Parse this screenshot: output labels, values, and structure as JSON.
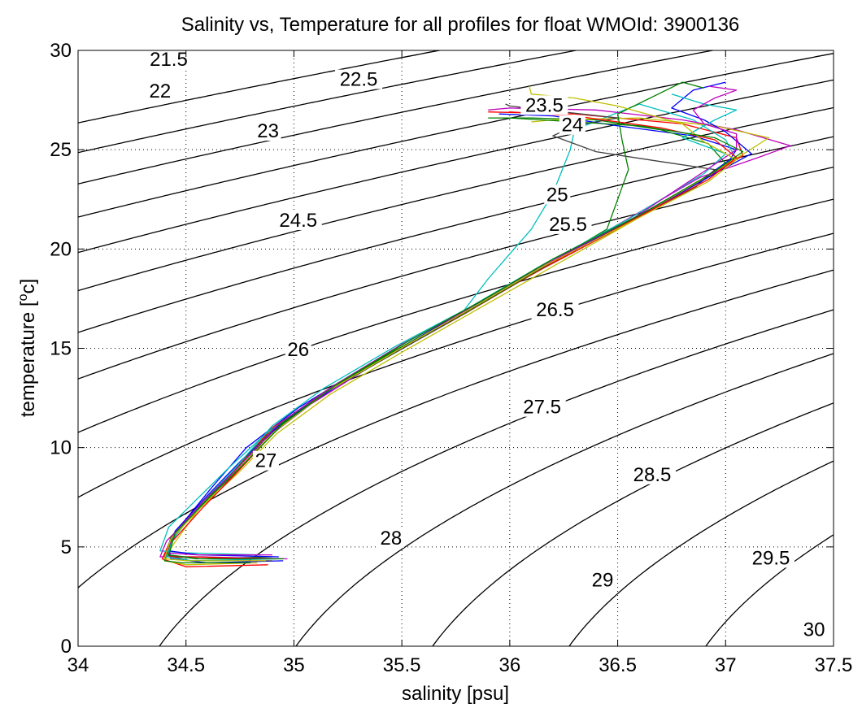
{
  "chart_data": {
    "type": "line",
    "title": "Salinity vs, Temperature for all profiles for float WMOId: 3900136",
    "xlabel": "salinity [psu]",
    "ylabel_main": "temperature [",
    "ylabel_sup": "o",
    "ylabel_tail": "c]",
    "xlim": [
      34,
      37.5
    ],
    "ylim": [
      0,
      30
    ],
    "xticks": [
      34,
      34.5,
      35,
      35.5,
      36,
      36.5,
      37,
      37.5
    ],
    "xtick_labels": [
      "34",
      "34.5",
      "35",
      "35.5",
      "36",
      "36.5",
      "37",
      "37.5"
    ],
    "yticks": [
      0,
      5,
      10,
      15,
      20,
      25,
      30
    ],
    "ytick_labels": [
      "0",
      "5",
      "10",
      "15",
      "20",
      "25",
      "30"
    ],
    "grid": true,
    "isopycnals": {
      "levels": [
        21.5,
        22,
        22.5,
        23,
        23.5,
        24,
        24.5,
        25,
        25.5,
        26,
        26.5,
        27,
        27.5,
        28,
        28.5,
        29,
        29.5,
        30
      ],
      "labels": [
        {
          "text": "21.5",
          "x": 34.42,
          "y": 29.3
        },
        {
          "text": "22",
          "x": 34.38,
          "y": 27.7
        },
        {
          "text": "22.5",
          "x": 35.3,
          "y": 28.3
        },
        {
          "text": "23",
          "x": 34.88,
          "y": 25.7
        },
        {
          "text": "23.5",
          "x": 36.16,
          "y": 27.0
        },
        {
          "text": "24",
          "x": 36.29,
          "y": 26.0
        },
        {
          "text": "24.5",
          "x": 35.02,
          "y": 21.2
        },
        {
          "text": "25",
          "x": 36.22,
          "y": 22.5
        },
        {
          "text": "25.5",
          "x": 36.27,
          "y": 21.0
        },
        {
          "text": "26",
          "x": 35.02,
          "y": 14.7
        },
        {
          "text": "26.5",
          "x": 36.21,
          "y": 16.7
        },
        {
          "text": "27",
          "x": 34.87,
          "y": 9.1
        },
        {
          "text": "27.5",
          "x": 36.15,
          "y": 11.8
        },
        {
          "text": "28",
          "x": 35.45,
          "y": 5.2
        },
        {
          "text": "28.5",
          "x": 36.66,
          "y": 8.4
        },
        {
          "text": "29",
          "x": 36.43,
          "y": 3.1
        },
        {
          "text": "29.5",
          "x": 37.21,
          "y": 4.2
        },
        {
          "text": "30",
          "x": 37.41,
          "y": 0.6
        }
      ]
    },
    "series": [
      {
        "color": "#0000ff",
        "points": [
          [
            34.95,
            4.3
          ],
          [
            34.6,
            4.2
          ],
          [
            34.43,
            4.4
          ],
          [
            34.42,
            5.0
          ],
          [
            34.5,
            6.4
          ],
          [
            34.62,
            8.0
          ],
          [
            34.78,
            10.0
          ],
          [
            35.02,
            12.0
          ],
          [
            35.35,
            14.2
          ],
          [
            35.7,
            16.2
          ],
          [
            36.05,
            18.5
          ],
          [
            36.45,
            20.8
          ],
          [
            36.85,
            23.2
          ],
          [
            37.02,
            24.5
          ],
          [
            37.05,
            25.0
          ],
          [
            36.85,
            25.7
          ],
          [
            36.5,
            26.2
          ],
          [
            36.2,
            26.7
          ],
          [
            35.95,
            26.8
          ]
        ]
      },
      {
        "color": "#008000",
        "points": [
          [
            34.9,
            4.5
          ],
          [
            34.55,
            4.4
          ],
          [
            34.4,
            4.6
          ],
          [
            34.43,
            5.4
          ],
          [
            34.55,
            6.8
          ],
          [
            34.7,
            8.5
          ],
          [
            34.86,
            10.5
          ],
          [
            35.1,
            12.5
          ],
          [
            35.42,
            14.6
          ],
          [
            35.77,
            16.7
          ],
          [
            36.1,
            18.8
          ],
          [
            36.5,
            21.0
          ],
          [
            36.88,
            23.4
          ],
          [
            37.0,
            24.3
          ],
          [
            36.92,
            25.3
          ],
          [
            36.7,
            26.0
          ],
          [
            36.4,
            26.5
          ],
          [
            36.1,
            26.6
          ],
          [
            35.9,
            26.6
          ]
        ]
      },
      {
        "color": "#ff0000",
        "points": [
          [
            34.88,
            4.1
          ],
          [
            34.5,
            4.0
          ],
          [
            34.39,
            4.4
          ],
          [
            34.44,
            5.6
          ],
          [
            34.58,
            7.2
          ],
          [
            34.72,
            8.8
          ],
          [
            34.9,
            11.0
          ],
          [
            35.15,
            12.8
          ],
          [
            35.48,
            14.9
          ],
          [
            35.82,
            17.0
          ],
          [
            36.15,
            19.0
          ],
          [
            36.55,
            21.3
          ],
          [
            36.9,
            23.5
          ],
          [
            37.08,
            24.7
          ],
          [
            37.05,
            25.6
          ],
          [
            36.8,
            26.3
          ],
          [
            36.3,
            26.8
          ],
          [
            35.9,
            26.9
          ]
        ]
      },
      {
        "color": "#00bfbf",
        "points": [
          [
            34.85,
            4.6
          ],
          [
            34.5,
            4.7
          ],
          [
            34.38,
            4.8
          ],
          [
            34.42,
            6.0
          ],
          [
            34.55,
            7.4
          ],
          [
            34.7,
            9.0
          ],
          [
            34.88,
            10.8
          ],
          [
            35.12,
            12.6
          ],
          [
            35.45,
            14.7
          ],
          [
            35.78,
            16.8
          ],
          [
            35.9,
            18.5
          ],
          [
            35.98,
            19.5
          ],
          [
            36.1,
            21.0
          ],
          [
            36.2,
            22.8
          ],
          [
            36.28,
            25.0
          ],
          [
            36.3,
            26.0
          ],
          [
            36.6,
            27.3
          ],
          [
            36.85,
            26.5
          ],
          [
            37.0,
            25.5
          ],
          [
            37.05,
            24.5
          ]
        ]
      },
      {
        "color": "#bf00bf",
        "points": [
          [
            34.97,
            4.4
          ],
          [
            34.58,
            4.5
          ],
          [
            34.38,
            4.5
          ],
          [
            34.41,
            5.3
          ],
          [
            34.53,
            6.6
          ],
          [
            34.68,
            8.3
          ],
          [
            34.84,
            10.2
          ],
          [
            35.08,
            12.2
          ],
          [
            35.4,
            14.4
          ],
          [
            35.75,
            16.5
          ],
          [
            36.08,
            18.7
          ],
          [
            36.48,
            21.1
          ],
          [
            36.88,
            23.6
          ],
          [
            37.15,
            24.6
          ],
          [
            37.3,
            25.2
          ],
          [
            37.05,
            26.0
          ],
          [
            36.8,
            26.5
          ],
          [
            36.4,
            27.0
          ],
          [
            36.0,
            27.1
          ],
          [
            35.9,
            27.0
          ]
        ]
      },
      {
        "color": "#bfbf00",
        "points": [
          [
            34.83,
            4.2
          ],
          [
            34.5,
            4.1
          ],
          [
            34.4,
            4.3
          ],
          [
            34.44,
            5.1
          ],
          [
            34.56,
            6.9
          ],
          [
            34.74,
            8.7
          ],
          [
            34.92,
            10.7
          ],
          [
            35.17,
            12.7
          ],
          [
            35.5,
            14.8
          ],
          [
            35.84,
            16.9
          ],
          [
            36.18,
            19.0
          ],
          [
            36.57,
            21.4
          ],
          [
            36.92,
            23.7
          ],
          [
            37.1,
            24.9
          ],
          [
            37.2,
            25.6
          ],
          [
            36.95,
            26.2
          ],
          [
            36.6,
            26.6
          ],
          [
            36.2,
            26.5
          ],
          [
            36.1,
            26.4
          ]
        ]
      },
      {
        "color": "#404040",
        "points": [
          [
            34.9,
            4.3
          ],
          [
            34.52,
            4.3
          ],
          [
            34.41,
            4.6
          ],
          [
            34.43,
            5.5
          ],
          [
            34.56,
            7.0
          ],
          [
            34.72,
            8.6
          ],
          [
            34.88,
            10.6
          ],
          [
            35.12,
            12.6
          ],
          [
            35.44,
            14.6
          ],
          [
            35.8,
            16.8
          ],
          [
            36.13,
            18.9
          ],
          [
            36.52,
            21.2
          ],
          [
            36.86,
            23.1
          ],
          [
            36.95,
            24.0
          ],
          [
            36.7,
            24.4
          ],
          [
            36.4,
            24.9
          ],
          [
            36.2,
            25.7
          ],
          [
            36.3,
            26.2
          ],
          [
            36.5,
            26.6
          ],
          [
            36.0,
            27.2
          ],
          [
            35.98,
            27.3
          ]
        ]
      },
      {
        "color": "#0000ff",
        "points": [
          [
            34.93,
            4.5
          ],
          [
            34.56,
            4.6
          ],
          [
            34.42,
            4.8
          ],
          [
            34.45,
            5.8
          ],
          [
            34.6,
            7.6
          ],
          [
            34.76,
            9.4
          ],
          [
            34.95,
            11.3
          ],
          [
            35.2,
            13.1
          ],
          [
            35.52,
            15.2
          ],
          [
            35.86,
            17.3
          ],
          [
            36.2,
            19.4
          ],
          [
            36.6,
            21.6
          ],
          [
            36.95,
            23.8
          ],
          [
            37.12,
            24.8
          ],
          [
            37.0,
            25.9
          ],
          [
            36.9,
            26.5
          ],
          [
            36.75,
            27.1
          ],
          [
            36.85,
            28.0
          ],
          [
            37.0,
            28.4
          ]
        ]
      },
      {
        "color": "#ff0000",
        "points": [
          [
            34.86,
            4.4
          ],
          [
            34.52,
            4.5
          ],
          [
            34.4,
            4.5
          ],
          [
            34.43,
            5.2
          ],
          [
            34.58,
            7.0
          ],
          [
            34.74,
            8.8
          ],
          [
            34.92,
            10.9
          ],
          [
            35.16,
            12.9
          ],
          [
            35.49,
            15.0
          ],
          [
            35.83,
            17.0
          ],
          [
            36.16,
            19.1
          ],
          [
            36.56,
            21.4
          ],
          [
            36.92,
            23.5
          ],
          [
            37.05,
            24.6
          ],
          [
            36.95,
            25.5
          ],
          [
            36.7,
            26.1
          ],
          [
            36.3,
            26.7
          ],
          [
            36.0,
            26.9
          ]
        ]
      },
      {
        "color": "#008000",
        "points": [
          [
            34.8,
            4.2
          ],
          [
            34.48,
            4.2
          ],
          [
            34.4,
            4.3
          ],
          [
            34.44,
            5.5
          ],
          [
            34.57,
            7.1
          ],
          [
            34.73,
            8.9
          ],
          [
            34.9,
            10.9
          ],
          [
            35.14,
            12.8
          ],
          [
            35.47,
            14.9
          ],
          [
            35.81,
            16.9
          ],
          [
            36.14,
            19.0
          ],
          [
            36.45,
            21.0
          ],
          [
            36.5,
            22.5
          ],
          [
            36.55,
            24.0
          ],
          [
            36.52,
            25.5
          ],
          [
            36.5,
            26.8
          ],
          [
            36.8,
            28.4
          ],
          [
            36.9,
            28.1
          ]
        ]
      },
      {
        "color": "#00bfbf",
        "points": [
          [
            34.92,
            4.4
          ],
          [
            34.53,
            4.3
          ],
          [
            34.41,
            4.5
          ],
          [
            34.44,
            5.4
          ],
          [
            34.57,
            7.2
          ],
          [
            34.73,
            9.0
          ],
          [
            34.9,
            11.1
          ],
          [
            35.14,
            13.0
          ],
          [
            35.47,
            15.1
          ],
          [
            35.82,
            17.1
          ],
          [
            36.15,
            19.2
          ],
          [
            36.55,
            21.5
          ],
          [
            36.9,
            23.8
          ],
          [
            37.0,
            24.8
          ],
          [
            36.8,
            25.6
          ],
          [
            36.95,
            26.5
          ],
          [
            37.05,
            27.0
          ],
          [
            36.9,
            27.3
          ],
          [
            36.75,
            27.8
          ]
        ]
      },
      {
        "color": "#bf00bf",
        "points": [
          [
            34.9,
            4.6
          ],
          [
            34.55,
            4.6
          ],
          [
            34.41,
            4.7
          ],
          [
            34.44,
            5.6
          ],
          [
            34.58,
            7.3
          ],
          [
            34.75,
            9.1
          ],
          [
            34.93,
            11.2
          ],
          [
            35.18,
            13.1
          ],
          [
            35.5,
            15.2
          ],
          [
            35.85,
            17.2
          ],
          [
            36.18,
            19.3
          ],
          [
            36.58,
            21.6
          ],
          [
            36.9,
            23.9
          ],
          [
            37.05,
            25.0
          ],
          [
            37.05,
            25.8
          ],
          [
            36.9,
            26.3
          ],
          [
            36.85,
            27.0
          ],
          [
            36.95,
            27.6
          ],
          [
            37.05,
            28.0
          ],
          [
            36.92,
            28.2
          ]
        ]
      },
      {
        "color": "#bfbf00",
        "points": [
          [
            34.87,
            4.3
          ],
          [
            34.51,
            4.3
          ],
          [
            34.4,
            4.4
          ],
          [
            34.43,
            5.4
          ],
          [
            34.57,
            7.0
          ],
          [
            34.73,
            8.8
          ],
          [
            34.91,
            10.8
          ],
          [
            35.15,
            12.8
          ],
          [
            35.48,
            14.9
          ],
          [
            35.82,
            17.0
          ],
          [
            36.15,
            19.1
          ],
          [
            36.55,
            21.3
          ],
          [
            36.92,
            23.4
          ],
          [
            37.05,
            24.5
          ],
          [
            36.9,
            25.4
          ],
          [
            36.8,
            26.3
          ],
          [
            36.5,
            27.2
          ],
          [
            36.3,
            27.6
          ],
          [
            36.1,
            27.8
          ],
          [
            36.09,
            28.2
          ]
        ]
      },
      {
        "color": "#008000",
        "points": [
          [
            34.95,
            4.4
          ],
          [
            34.57,
            4.4
          ],
          [
            34.42,
            4.6
          ],
          [
            34.45,
            5.7
          ],
          [
            34.6,
            7.4
          ],
          [
            34.77,
            9.2
          ],
          [
            34.95,
            11.2
          ],
          [
            35.2,
            13.2
          ],
          [
            35.52,
            15.3
          ],
          [
            35.87,
            17.4
          ],
          [
            36.2,
            19.5
          ],
          [
            36.6,
            21.7
          ],
          [
            36.95,
            23.9
          ],
          [
            37.08,
            24.9
          ],
          [
            36.95,
            25.6
          ],
          [
            36.6,
            26.2
          ],
          [
            36.0,
            26.6
          ],
          [
            35.97,
            26.6
          ]
        ]
      }
    ]
  }
}
